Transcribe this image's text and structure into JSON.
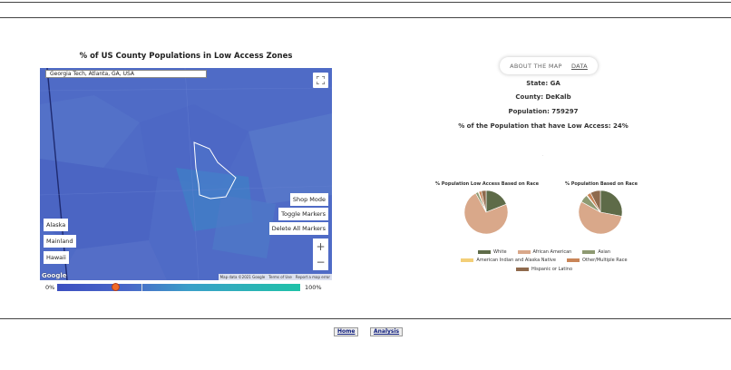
{
  "map": {
    "title": "% of US County Populations in Low Access Zones",
    "search_value": "Georgia Tech, Atlanta, GA, USA",
    "controls": {
      "shop_mode": "Shop Mode",
      "toggle_markers": "Toggle Markers",
      "delete_markers": "Delete All Markers",
      "alaska": "Alaska",
      "mainland": "Mainland",
      "hawaii": "Hawaii"
    },
    "zoom_in": "+",
    "zoom_out": "−",
    "google_logo": "Google",
    "attribution": {
      "map_data": "Map data ©2021 Google",
      "terms": "Terms of Use",
      "report": "Report a map error"
    },
    "legend": {
      "min": "0%",
      "max": "100%",
      "marker_value_fraction": 0.24
    },
    "colors": {
      "map_fill": "#4f6bc6",
      "county_outline": "#ffffff",
      "handle": "#f06a28"
    }
  },
  "tabs": {
    "about": "ABOUT THE MAP",
    "data": "DATA",
    "active": "data"
  },
  "info": {
    "state": "State: GA",
    "county": "County: DeKalb",
    "population": "Population: 759297",
    "low_access": "% of the Population that have Low Access: 24%"
  },
  "chart_data": [
    {
      "type": "pie",
      "title": "% Population Low Access Based on Race",
      "categories": [
        "White",
        "African American",
        "Asian",
        "American Indian and Alaska Native",
        "Other/Multiple Race",
        "Hispanic or Latino"
      ],
      "values": [
        19,
        73,
        2,
        0.5,
        2,
        3.5
      ]
    },
    {
      "type": "pie",
      "title": "% Population Based on Race",
      "categories": [
        "White",
        "African American",
        "Asian",
        "American Indian and Alaska Native",
        "Other/Multiple Race",
        "Hispanic or Latino"
      ],
      "values": [
        28,
        55,
        6,
        0.5,
        3,
        7.5
      ]
    }
  ],
  "legend_items": [
    {
      "label": "White",
      "color": "#5e6b48"
    },
    {
      "label": "African American",
      "color": "#d9a88a"
    },
    {
      "label": "Asian",
      "color": "#8e9a72"
    },
    {
      "label": "American Indian and Alaska Native",
      "color": "#f3cf78"
    },
    {
      "label": "Other/Multiple Race",
      "color": "#c98558"
    },
    {
      "label": "Hispanic or Latino",
      "color": "#8f6a4d"
    }
  ],
  "footer": {
    "home": "Home",
    "analysis": "Analysis"
  }
}
